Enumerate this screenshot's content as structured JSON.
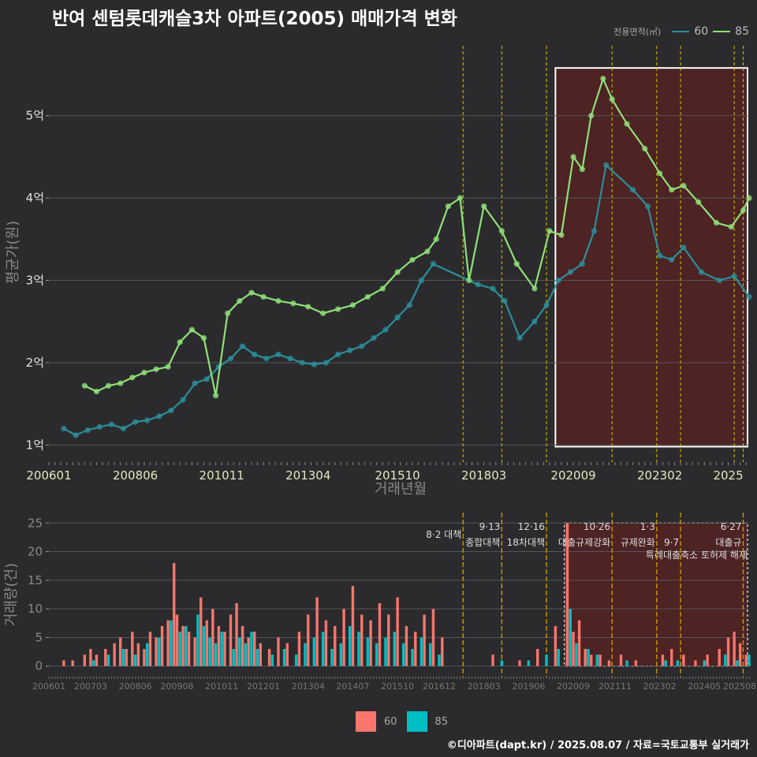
{
  "title": "반여 센텀롯데캐슬3차 아파트(2005) 매매가격 변화",
  "footer": "©디아파트(dapt.kr) / 2025.08.07 / 자료=국토교통부 실거래가",
  "colors": {
    "bg": "#2b2b2d",
    "grid": "#555558",
    "s60": "#2a8f9a",
    "s85": "#8fe078",
    "bar60": "#f8766d",
    "bar85": "#00bfc4",
    "policy": "#d4c400",
    "highlight": "#5a2222"
  },
  "legend_top": {
    "title": "전용면적(㎡)",
    "items": [
      {
        "label": "60",
        "color": "#2a8f9a"
      },
      {
        "label": "85",
        "color": "#8fe078"
      }
    ]
  },
  "legend_bottom": {
    "items": [
      {
        "label": "60",
        "color": "#f8766d"
      },
      {
        "label": "85",
        "color": "#00bfc4"
      }
    ]
  },
  "chart_data": [
    {
      "type": "line",
      "title": "반여 센텀롯데캐슬3차 아파트(2005) 매매가격 변화",
      "xlabel": "거래년월",
      "ylabel": "평균가(원)",
      "ylim": [
        0.85,
        5.85
      ],
      "xlim": [
        "2006-01",
        "2025-08"
      ],
      "y_ticks": [
        {
          "v": 1,
          "label": "1억"
        },
        {
          "v": 2,
          "label": "2억"
        },
        {
          "v": 3,
          "label": "3억"
        },
        {
          "v": 4,
          "label": "4억"
        },
        {
          "v": 5,
          "label": "5억"
        }
      ],
      "x_ticks": [
        "200601",
        "200806",
        "201011",
        "201304",
        "201510",
        "201803",
        "202009",
        "202302",
        "2025"
      ],
      "policy_dates": [
        "2017-08",
        "2018-09",
        "2019-12",
        "2021-10",
        "2023-01",
        "2023-09",
        "2025-03",
        "2025-06"
      ],
      "highlight_range": [
        "2020-03",
        "2025-08"
      ],
      "series": [
        {
          "name": "60",
          "x": [
            "2006-06",
            "2006-10",
            "2007-02",
            "2007-06",
            "2007-10",
            "2008-02",
            "2008-06",
            "2008-10",
            "2009-02",
            "2009-06",
            "2009-10",
            "2010-02",
            "2010-06",
            "2010-10",
            "2011-02",
            "2011-06",
            "2011-10",
            "2012-02",
            "2012-06",
            "2012-10",
            "2013-02",
            "2013-06",
            "2013-10",
            "2014-02",
            "2014-06",
            "2014-10",
            "2015-02",
            "2015-06",
            "2015-10",
            "2016-02",
            "2016-06",
            "2016-10",
            "2018-01",
            "2018-06",
            "2018-10",
            "2019-03",
            "2019-08",
            "2019-12",
            "2020-04",
            "2020-08",
            "2020-12",
            "2021-04",
            "2021-08",
            "2022-05",
            "2022-10",
            "2023-02",
            "2023-06",
            "2023-10",
            "2024-04",
            "2024-10",
            "2025-03",
            "2025-08"
          ],
          "values": [
            1.2,
            1.12,
            1.18,
            1.22,
            1.25,
            1.2,
            1.28,
            1.3,
            1.35,
            1.42,
            1.55,
            1.75,
            1.8,
            1.95,
            2.05,
            2.2,
            2.1,
            2.05,
            2.1,
            2.05,
            2.0,
            1.98,
            2.0,
            2.1,
            2.15,
            2.2,
            2.3,
            2.4,
            2.55,
            2.7,
            3.0,
            3.2,
            2.95,
            2.9,
            2.75,
            2.3,
            2.5,
            2.7,
            3.0,
            3.1,
            3.2,
            3.6,
            4.4,
            4.1,
            3.9,
            3.3,
            3.25,
            3.4,
            3.1,
            3.0,
            3.05,
            2.8
          ]
        },
        {
          "name": "85",
          "x": [
            "2007-01",
            "2007-05",
            "2007-09",
            "2008-01",
            "2008-05",
            "2008-09",
            "2009-01",
            "2009-05",
            "2009-09",
            "2010-01",
            "2010-05",
            "2010-09",
            "2011-01",
            "2011-05",
            "2011-09",
            "2012-01",
            "2012-06",
            "2012-11",
            "2013-04",
            "2013-09",
            "2014-02",
            "2014-07",
            "2014-12",
            "2015-05",
            "2015-10",
            "2016-03",
            "2016-08",
            "2016-11",
            "2017-03",
            "2017-07",
            "2017-10",
            "2018-03",
            "2018-09",
            "2019-02",
            "2019-08",
            "2020-01",
            "2020-05",
            "2020-09",
            "2020-12",
            "2021-03",
            "2021-07",
            "2021-10",
            "2022-03",
            "2022-09",
            "2023-02",
            "2023-06",
            "2023-10",
            "2024-03",
            "2024-09",
            "2025-02",
            "2025-06",
            "2025-08"
          ],
          "values": [
            1.72,
            1.65,
            1.72,
            1.75,
            1.82,
            1.88,
            1.92,
            1.95,
            2.25,
            2.4,
            2.3,
            1.6,
            2.6,
            2.75,
            2.85,
            2.8,
            2.75,
            2.72,
            2.68,
            2.6,
            2.65,
            2.7,
            2.8,
            2.9,
            3.1,
            3.25,
            3.35,
            3.5,
            3.9,
            4.0,
            3.0,
            3.9,
            3.6,
            3.2,
            2.9,
            3.6,
            3.55,
            4.5,
            4.35,
            5.0,
            5.45,
            5.2,
            4.9,
            4.6,
            4.3,
            4.1,
            4.15,
            3.95,
            3.7,
            3.65,
            3.85,
            4.0
          ]
        }
      ]
    },
    {
      "type": "bar",
      "xlabel": "",
      "ylabel": "거래량(건)",
      "ylim": [
        -1,
        26
      ],
      "xlim": [
        "2006-01",
        "2025-08"
      ],
      "y_ticks": [
        0,
        5,
        10,
        15,
        20,
        25
      ],
      "x_ticks": [
        "200601",
        "200703",
        "200806",
        "200908",
        "201011",
        "201201",
        "201304",
        "201407",
        "201510",
        "201612",
        "201803",
        "201906",
        "202009",
        "202111",
        "202302",
        "202405",
        "202508"
      ],
      "highlight_range": [
        "2020-06",
        "2025-08"
      ],
      "policy_markers": [
        {
          "date": "2017-08",
          "label": "8·2 대책",
          "label2": ""
        },
        {
          "date": "2018-09",
          "label": "9·13",
          "label2": "종합대책"
        },
        {
          "date": "2019-12",
          "label": "12·16",
          "label2": "18차대책"
        },
        {
          "date": "2021-10",
          "label": "10·26",
          "label2": "대출규제강화"
        },
        {
          "date": "2023-01",
          "label": "1·3",
          "label2": "규제완화"
        },
        {
          "date": "2023-09",
          "label": "",
          "label2": "9·7"
        },
        {
          "date": "2025-06",
          "label": "6·27",
          "label2": "대출규"
        }
      ],
      "policy_extra_label": "특례대출축소 토허제 해제",
      "series": [
        {
          "name": "60",
          "x": [
            "2006-06",
            "2006-09",
            "2007-01",
            "2007-03",
            "2007-05",
            "2007-08",
            "2007-11",
            "2008-01",
            "2008-03",
            "2008-05",
            "2008-07",
            "2008-09",
            "2008-11",
            "2009-01",
            "2009-03",
            "2009-05",
            "2009-07",
            "2009-08",
            "2009-10",
            "2009-12",
            "2010-02",
            "2010-04",
            "2010-06",
            "2010-08",
            "2010-10",
            "2010-12",
            "2011-02",
            "2011-04",
            "2011-06",
            "2011-08",
            "2011-10",
            "2011-12",
            "2012-03",
            "2012-06",
            "2012-09",
            "2013-01",
            "2013-04",
            "2013-07",
            "2013-10",
            "2014-01",
            "2014-04",
            "2014-07",
            "2014-10",
            "2015-01",
            "2015-04",
            "2015-07",
            "2015-10",
            "2016-01",
            "2016-04",
            "2016-07",
            "2016-10",
            "2017-01",
            "2018-06",
            "2019-03",
            "2019-09",
            "2020-03",
            "2020-07",
            "2020-09",
            "2020-11",
            "2021-01",
            "2021-03",
            "2021-06",
            "2021-09",
            "2022-01",
            "2022-06",
            "2023-03",
            "2023-06",
            "2023-10",
            "2024-02",
            "2024-06",
            "2024-10",
            "2025-01",
            "2025-03",
            "2025-05",
            "2025-07"
          ],
          "values": [
            1,
            1,
            2,
            3,
            2,
            3,
            4,
            5,
            3,
            6,
            4,
            3,
            6,
            5,
            7,
            8,
            18,
            9,
            7,
            6,
            5,
            12,
            8,
            10,
            7,
            6,
            9,
            11,
            7,
            5,
            6,
            4,
            3,
            5,
            4,
            6,
            9,
            12,
            8,
            7,
            10,
            14,
            9,
            8,
            11,
            9,
            12,
            7,
            6,
            9,
            10,
            5,
            2,
            1,
            3,
            7,
            25,
            6,
            8,
            3,
            2,
            2,
            1,
            2,
            1,
            2,
            3,
            2,
            1,
            2,
            3,
            5,
            6,
            4,
            2
          ]
        },
        {
          "name": "85",
          "x": [
            "2007-04",
            "2007-09",
            "2008-02",
            "2008-06",
            "2008-10",
            "2009-02",
            "2009-06",
            "2009-09",
            "2009-11",
            "2010-03",
            "2010-05",
            "2010-07",
            "2010-09",
            "2010-11",
            "2011-03",
            "2011-05",
            "2011-07",
            "2011-09",
            "2011-11",
            "2012-04",
            "2012-08",
            "2012-12",
            "2013-03",
            "2013-06",
            "2013-09",
            "2013-12",
            "2014-03",
            "2014-06",
            "2014-09",
            "2014-12",
            "2015-03",
            "2015-06",
            "2015-09",
            "2015-12",
            "2016-03",
            "2016-06",
            "2016-09",
            "2016-12",
            "2018-09",
            "2019-06",
            "2019-12",
            "2020-04",
            "2020-08",
            "2020-10",
            "2021-02",
            "2021-05",
            "2022-03",
            "2023-04",
            "2023-08",
            "2024-05",
            "2024-12",
            "2025-04",
            "2025-08"
          ],
          "values": [
            1,
            2,
            3,
            2,
            4,
            5,
            8,
            6,
            7,
            9,
            7,
            5,
            4,
            6,
            3,
            5,
            4,
            6,
            3,
            2,
            3,
            2,
            4,
            5,
            6,
            3,
            4,
            7,
            6,
            5,
            4,
            5,
            6,
            4,
            3,
            5,
            4,
            2,
            1,
            1,
            2,
            3,
            10,
            4,
            3,
            2,
            1,
            1,
            1,
            1,
            2,
            1,
            2
          ]
        }
      ]
    }
  ]
}
